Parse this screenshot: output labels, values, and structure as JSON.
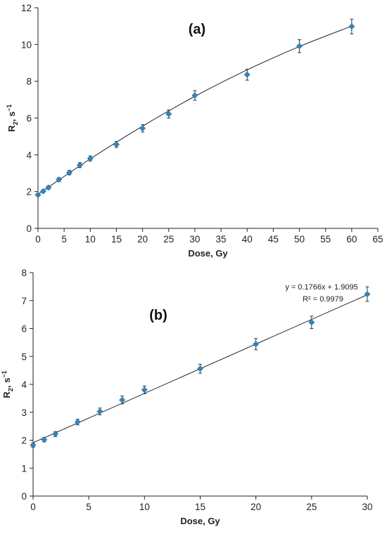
{
  "chart_data": [
    {
      "type": "scatter",
      "panel_label": "(a)",
      "xlabel": "Dose, Gy",
      "ylabel": "R2, s−1",
      "ylabel_parts": {
        "main": "R",
        "sub": "2",
        "mid": ", s",
        "sup": "−1"
      },
      "xlim": [
        0,
        65
      ],
      "ylim": [
        0,
        12
      ],
      "xticks": [
        0,
        5,
        10,
        15,
        20,
        25,
        30,
        35,
        40,
        45,
        50,
        55,
        60,
        65
      ],
      "yticks": [
        0,
        2,
        4,
        6,
        8,
        10,
        12
      ],
      "x": [
        0,
        1,
        2,
        4,
        6,
        8,
        10,
        15,
        20,
        25,
        30,
        40,
        50,
        60
      ],
      "y": [
        1.82,
        2.02,
        2.22,
        2.65,
        3.03,
        3.44,
        3.8,
        4.56,
        5.44,
        6.22,
        7.23,
        8.36,
        9.91,
        10.98
      ],
      "yerr": [
        0.08,
        0.08,
        0.09,
        0.1,
        0.12,
        0.14,
        0.14,
        0.16,
        0.2,
        0.22,
        0.26,
        0.3,
        0.35,
        0.4
      ],
      "trendline": {
        "type": "polynomial",
        "x": [
          0,
          10,
          20,
          30,
          40,
          50,
          60
        ],
        "y": [
          1.85,
          3.78,
          5.56,
          7.18,
          8.62,
          9.89,
          11.0
        ]
      },
      "grid": false,
      "legend": "none",
      "marker_color": "#2e86c1"
    },
    {
      "type": "scatter",
      "panel_label": "(b)",
      "xlabel": "Dose, Gy",
      "ylabel": "R2, s−1",
      "ylabel_parts": {
        "main": "R",
        "sub": "2",
        "mid": ", s",
        "sup": "−1"
      },
      "xlim": [
        0,
        30
      ],
      "ylim": [
        0,
        8
      ],
      "xticks": [
        0,
        5,
        10,
        15,
        20,
        25,
        30
      ],
      "yticks": [
        0,
        1,
        2,
        3,
        4,
        5,
        6,
        7,
        8
      ],
      "x": [
        0,
        1,
        2,
        4,
        6,
        8,
        10,
        15,
        20,
        25,
        30
      ],
      "y": [
        1.82,
        2.02,
        2.22,
        2.65,
        3.03,
        3.44,
        3.8,
        4.56,
        5.44,
        6.22,
        7.23
      ],
      "yerr": [
        0.08,
        0.08,
        0.09,
        0.1,
        0.12,
        0.14,
        0.14,
        0.16,
        0.2,
        0.22,
        0.26
      ],
      "trendline": {
        "type": "linear",
        "slope": 0.1766,
        "intercept": 1.9095
      },
      "equation": "y = 0.1766x + 1.9095",
      "r_squared": "R² = 0.9979",
      "grid": false,
      "legend": "none",
      "marker_color": "#2e86c1"
    }
  ]
}
